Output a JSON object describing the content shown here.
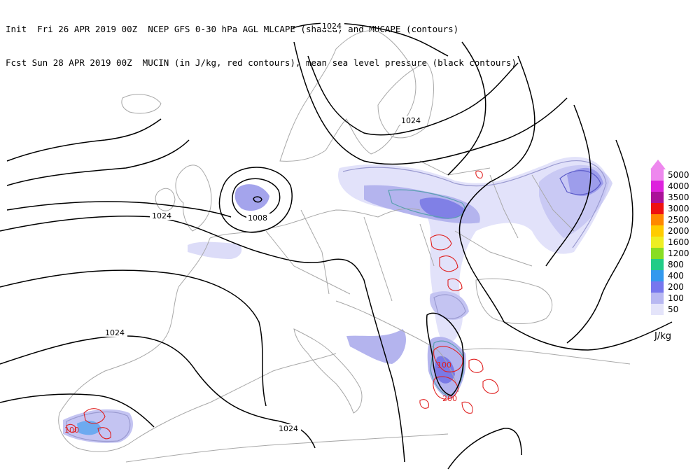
{
  "header": {
    "line1": "Init  Fri 26 APR 2019 00Z  NCEP GFS 0-30 hPa AGL MLCAPE (shaded) and MUCAPE (contours)",
    "line2": "Fcst Sun 28 APR 2019 00Z  MUCIN (in J/kg, red contours), mean sea level pressure (black contours)"
  },
  "isobar_labels": [
    "1024",
    "1024",
    "1024",
    "1008",
    "1024",
    "1024"
  ],
  "cin_labels": [
    "100",
    "200",
    "100"
  ],
  "legend": {
    "units": "J/kg",
    "entries": [
      {
        "label": "5000",
        "color": "#ee88ee"
      },
      {
        "label": "4000",
        "color": "#dd22dd"
      },
      {
        "label": "3500",
        "color": "#aa1199"
      },
      {
        "label": "3000",
        "color": "#ee1111"
      },
      {
        "label": "2500",
        "color": "#ff8800"
      },
      {
        "label": "2000",
        "color": "#ffcc00"
      },
      {
        "label": "1600",
        "color": "#eeee22"
      },
      {
        "label": "1200",
        "color": "#88dd22"
      },
      {
        "label": "800",
        "color": "#22cc88"
      },
      {
        "label": "400",
        "color": "#3399ee"
      },
      {
        "label": "200",
        "color": "#7777ee"
      },
      {
        "label": "100",
        "color": "#b8b8f2"
      },
      {
        "label": "50",
        "color": "#e4e4fa"
      }
    ]
  },
  "colors": {
    "coast": "#a8a8a8",
    "isobar": "#000000",
    "cin": "#e02020",
    "cape_light": "#dcdcf8",
    "cape_mid": "#b4b4ee",
    "cape_dark": "#8080e6"
  }
}
